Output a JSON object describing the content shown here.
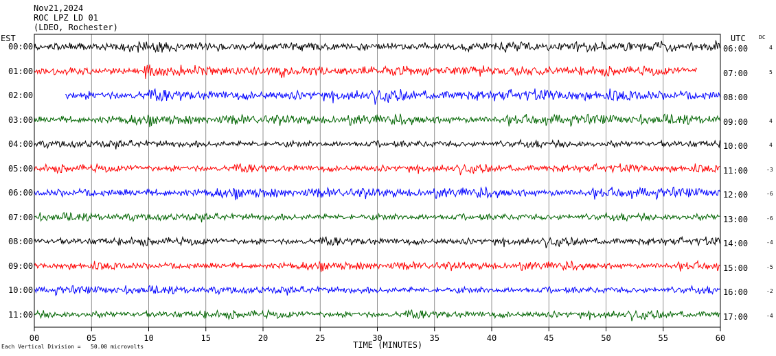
{
  "header": {
    "date": "Nov21,2024",
    "station": "ROC LPZ LD 01",
    "network": "(LDEO, Rochester)"
  },
  "left_tz": "EST",
  "right_tz": "UTC",
  "dc_label": "DC",
  "footnote": "Each Vertical Division =   50.00 microvolts",
  "colors": {
    "black": "#000000",
    "red": "#ff0000",
    "blue": "#0000ff",
    "green": "#006400"
  },
  "chart_data": {
    "type": "line",
    "xlabel": "TIME (MINUTES)",
    "xlim": [
      0,
      60
    ],
    "x_ticks": [
      "00",
      "05",
      "10",
      "15",
      "20",
      "25",
      "30",
      "35",
      "40",
      "45",
      "50",
      "55",
      "60"
    ],
    "rows": [
      {
        "est": "00:00",
        "utc": "06:00",
        "dc": "4",
        "color": "#000000",
        "start": 0,
        "end": 60,
        "amp": 6
      },
      {
        "est": "01:00",
        "utc": "07:00",
        "dc": "5",
        "color": "#ff0000",
        "start": 0,
        "end": 58,
        "amp": 6
      },
      {
        "est": "02:00",
        "utc": "08:00",
        "dc": "",
        "color": "#0000ff",
        "start": 2.7,
        "end": 60,
        "amp": 7
      },
      {
        "est": "03:00",
        "utc": "09:00",
        "dc": "4",
        "color": "#006400",
        "start": 0,
        "end": 60,
        "amp": 6
      },
      {
        "est": "04:00",
        "utc": "10:00",
        "dc": "4",
        "color": "#000000",
        "start": 0,
        "end": 60,
        "amp": 5
      },
      {
        "est": "05:00",
        "utc": "11:00",
        "dc": "-3",
        "color": "#ff0000",
        "start": 0,
        "end": 60,
        "amp": 5
      },
      {
        "est": "06:00",
        "utc": "12:00",
        "dc": "-6",
        "color": "#0000ff",
        "start": 0,
        "end": 60,
        "amp": 6
      },
      {
        "est": "07:00",
        "utc": "13:00",
        "dc": "-6",
        "color": "#006400",
        "start": 0,
        "end": 60,
        "amp": 5
      },
      {
        "est": "08:00",
        "utc": "14:00",
        "dc": "-4",
        "color": "#000000",
        "start": 0,
        "end": 60,
        "amp": 5
      },
      {
        "est": "09:00",
        "utc": "15:00",
        "dc": "-5",
        "color": "#ff0000",
        "start": 0,
        "end": 60,
        "amp": 5
      },
      {
        "est": "10:00",
        "utc": "16:00",
        "dc": "-2",
        "color": "#0000ff",
        "start": 0,
        "end": 60,
        "amp": 5
      },
      {
        "est": "11:00",
        "utc": "17:00",
        "dc": "-4",
        "color": "#006400",
        "start": 0,
        "end": 60,
        "amp": 5
      }
    ]
  }
}
